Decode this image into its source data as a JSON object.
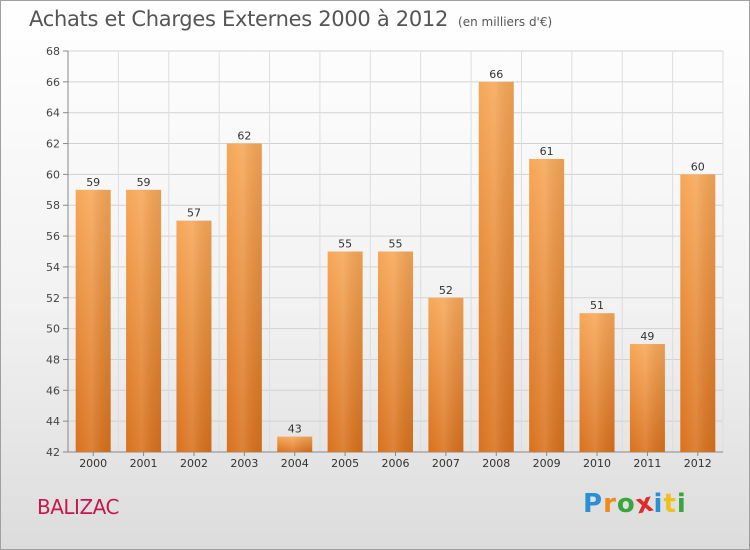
{
  "chart_data": {
    "type": "bar",
    "title": "Achats et Charges Externes 2000 à 2012",
    "subtitle": "(en milliers d'€)",
    "categories": [
      "2000",
      "2001",
      "2002",
      "2003",
      "2004",
      "2005",
      "2006",
      "2007",
      "2008",
      "2009",
      "2010",
      "2011",
      "2012"
    ],
    "values": [
      59,
      59,
      57,
      62,
      43,
      55,
      55,
      52,
      66,
      61,
      51,
      49,
      60
    ],
    "ylim": [
      42,
      68
    ],
    "yticks": [
      42,
      44,
      46,
      48,
      50,
      52,
      54,
      56,
      58,
      60,
      62,
      64,
      66,
      68
    ],
    "xlabel": "",
    "ylabel": "",
    "grid": true,
    "bar_color_top": "#f7a757",
    "bar_color_bottom": "#d9711c"
  },
  "place": "BALIZAC",
  "brand": {
    "letters": [
      "P",
      "r",
      "o",
      "x",
      "i",
      "t",
      "i"
    ],
    "colors": [
      "#2b8fd6",
      "#f08a1c",
      "#3aa53a",
      "#e02a2a",
      "#2b8fd6",
      "#f0c01c",
      "#3aa53a"
    ]
  }
}
